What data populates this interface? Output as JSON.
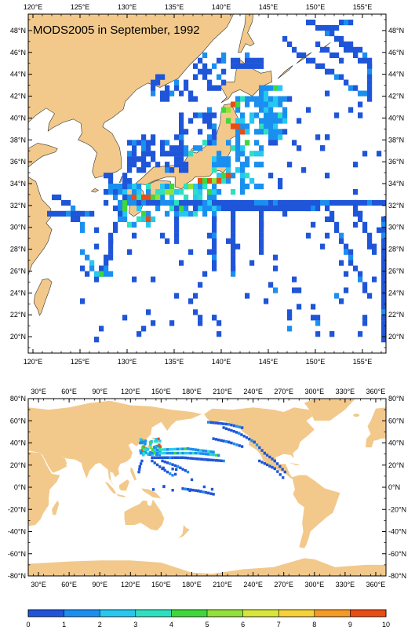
{
  "map_title": "MODS2005 in September, 1992",
  "colors": {
    "land": "#f2c98b",
    "coast": "#333333",
    "ocean": "#ffffff"
  },
  "regional_map": {
    "lon_range": [
      119.5,
      157.5
    ],
    "lat_range": [
      18.5,
      49.5
    ],
    "lon_ticks": [
      "120°E",
      "125°E",
      "130°E",
      "135°E",
      "140°E",
      "145°E",
      "150°E",
      "155°E"
    ],
    "lat_ticks": [
      "20°N",
      "22°N",
      "24°N",
      "26°N",
      "28°N",
      "30°N",
      "32°N",
      "34°N",
      "36°N",
      "38°N",
      "40°N",
      "42°N",
      "44°N",
      "46°N",
      "48°N"
    ]
  },
  "global_map": {
    "lon_range": [
      20,
      370
    ],
    "lat_range": [
      -80,
      80
    ],
    "lon_ticks": [
      "30°E",
      "60°E",
      "90°E",
      "120°E",
      "150°E",
      "180°E",
      "210°E",
      "240°E",
      "270°E",
      "300°E",
      "330°E",
      "360°E"
    ],
    "lat_ticks": [
      "80°N",
      "60°N",
      "40°N",
      "20°N",
      "0°N",
      "-20°N",
      "-40°N",
      "-60°N",
      "-80°N"
    ]
  },
  "colorbar": {
    "labels": [
      "0",
      "1",
      "2",
      "3",
      "4",
      "5",
      "6",
      "7",
      "8",
      "9",
      "10"
    ],
    "colors": [
      "#1f55d8",
      "#1a8ff0",
      "#26c8f0",
      "#2ee0c0",
      "#3fd83a",
      "#92e03a",
      "#d8e63a",
      "#f5d23a",
      "#f59a22",
      "#e84d14"
    ]
  }
}
